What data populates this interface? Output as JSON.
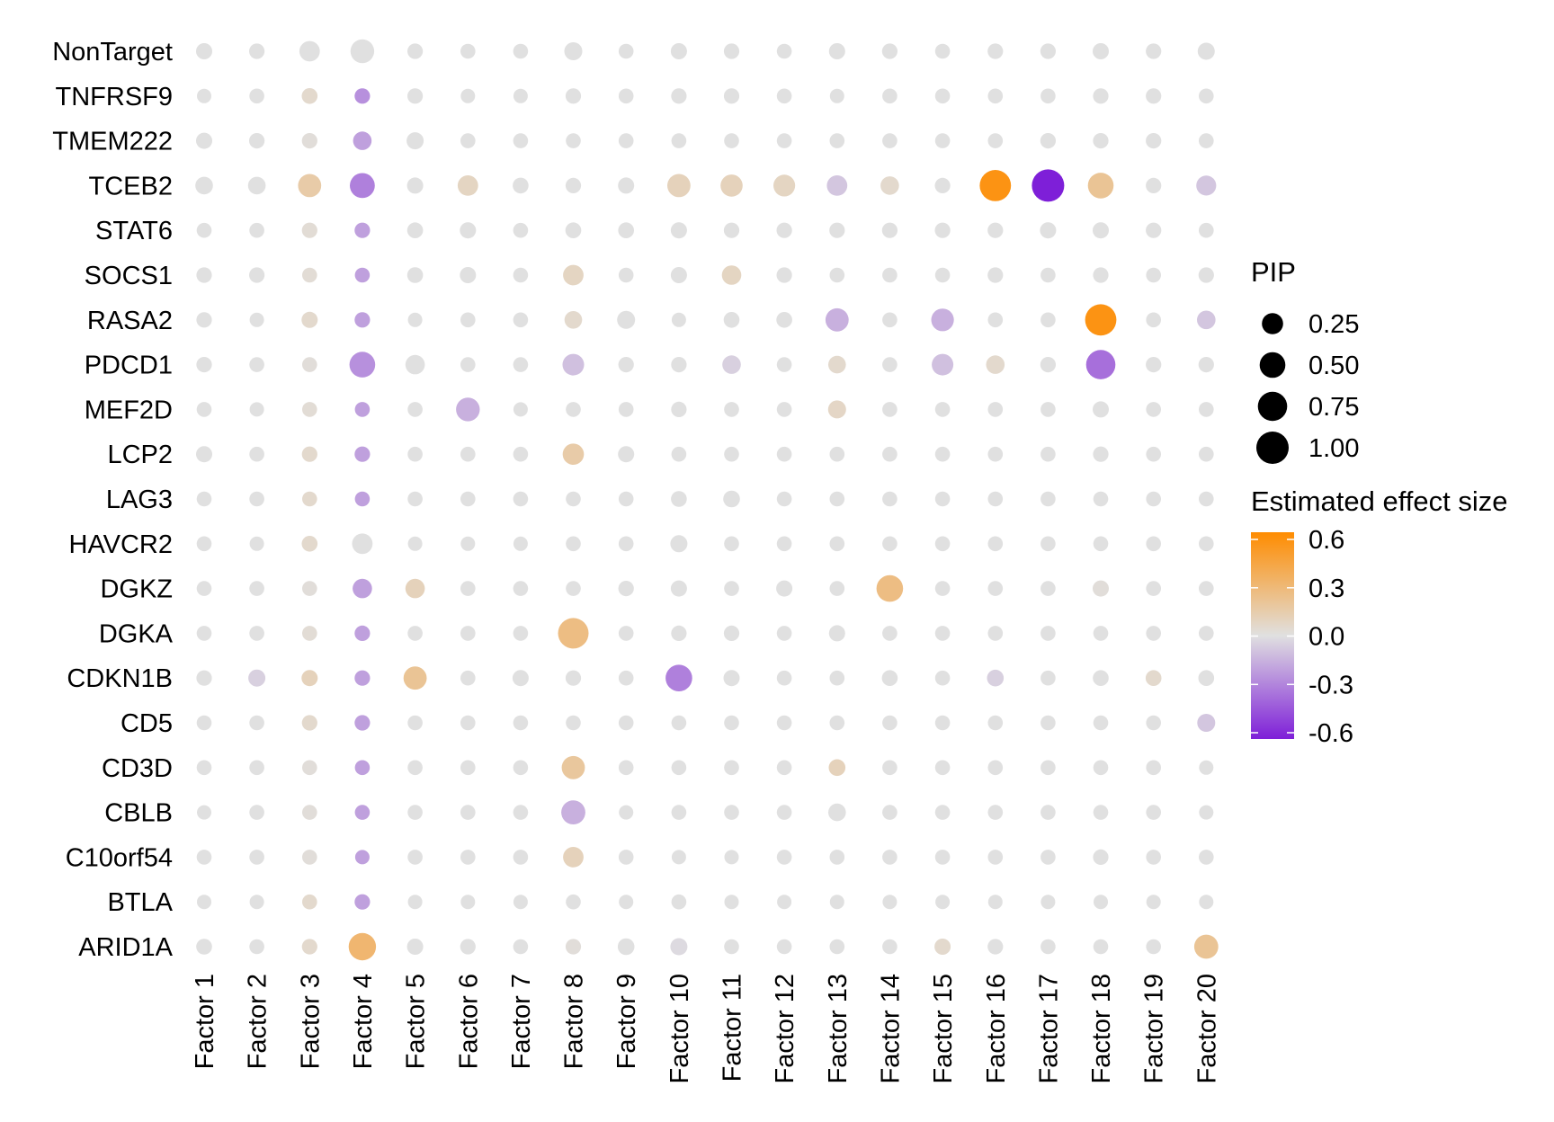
{
  "chart_data": {
    "type": "dot-heatmap",
    "x_categories": [
      "Factor 1",
      "Factor 2",
      "Factor 3",
      "Factor 4",
      "Factor 5",
      "Factor 6",
      "Factor 7",
      "Factor 8",
      "Factor 9",
      "Factor 10",
      "Factor 11",
      "Factor 12",
      "Factor 13",
      "Factor 14",
      "Factor 15",
      "Factor 16",
      "Factor 17",
      "Factor 18",
      "Factor 19",
      "Factor 20"
    ],
    "y_categories": [
      "NonTarget",
      "TNFRSF9",
      "TMEM222",
      "TCEB2",
      "STAT6",
      "SOCS1",
      "RASA2",
      "PDCD1",
      "MEF2D",
      "LCP2",
      "LAG3",
      "HAVCR2",
      "DGKZ",
      "DGKA",
      "CDKN1B",
      "CD5",
      "CD3D",
      "CBLB",
      "C10orf54",
      "BTLA",
      "ARID1A"
    ],
    "pip": [
      [
        0.08,
        0.06,
        0.22,
        0.38,
        0.06,
        0.05,
        0.05,
        0.13,
        0.05,
        0.08,
        0.06,
        0.05,
        0.08,
        0.06,
        0.05,
        0.06,
        0.06,
        0.08,
        0.06,
        0.1
      ],
      [
        0.04,
        0.05,
        0.07,
        0.06,
        0.06,
        0.04,
        0.04,
        0.06,
        0.05,
        0.06,
        0.06,
        0.05,
        0.04,
        0.05,
        0.05,
        0.05,
        0.05,
        0.06,
        0.06,
        0.05
      ],
      [
        0.08,
        0.06,
        0.06,
        0.15,
        0.1,
        0.05,
        0.05,
        0.05,
        0.05,
        0.05,
        0.05,
        0.05,
        0.05,
        0.05,
        0.05,
        0.05,
        0.06,
        0.06,
        0.06,
        0.05
      ],
      [
        0.12,
        0.12,
        0.35,
        0.45,
        0.08,
        0.22,
        0.07,
        0.06,
        0.08,
        0.35,
        0.3,
        0.28,
        0.22,
        0.15,
        0.06,
        0.9,
        1.0,
        0.5,
        0.06,
        0.2
      ],
      [
        0.05,
        0.05,
        0.06,
        0.06,
        0.07,
        0.08,
        0.05,
        0.07,
        0.07,
        0.08,
        0.06,
        0.06,
        0.06,
        0.06,
        0.06,
        0.06,
        0.08,
        0.08,
        0.06,
        0.05
      ],
      [
        0.06,
        0.06,
        0.05,
        0.05,
        0.07,
        0.08,
        0.05,
        0.22,
        0.05,
        0.08,
        0.18,
        0.06,
        0.05,
        0.05,
        0.05,
        0.06,
        0.05,
        0.06,
        0.05,
        0.06
      ],
      [
        0.06,
        0.04,
        0.08,
        0.06,
        0.04,
        0.05,
        0.05,
        0.12,
        0.13,
        0.04,
        0.07,
        0.07,
        0.35,
        0.05,
        0.32,
        0.05,
        0.05,
        0.9,
        0.05,
        0.15
      ],
      [
        0.06,
        0.05,
        0.05,
        0.5,
        0.18,
        0.05,
        0.05,
        0.27,
        0.06,
        0.06,
        0.15,
        0.05,
        0.12,
        0.05,
        0.27,
        0.15,
        0.06,
        0.75,
        0.06,
        0.06
      ],
      [
        0.05,
        0.04,
        0.05,
        0.05,
        0.05,
        0.38,
        0.04,
        0.05,
        0.05,
        0.06,
        0.05,
        0.05,
        0.13,
        0.05,
        0.05,
        0.05,
        0.05,
        0.08,
        0.05,
        0.05
      ],
      [
        0.08,
        0.05,
        0.06,
        0.06,
        0.05,
        0.05,
        0.05,
        0.25,
        0.08,
        0.05,
        0.05,
        0.05,
        0.05,
        0.05,
        0.05,
        0.05,
        0.05,
        0.06,
        0.05,
        0.05
      ],
      [
        0.05,
        0.05,
        0.05,
        0.05,
        0.05,
        0.05,
        0.05,
        0.05,
        0.05,
        0.07,
        0.09,
        0.05,
        0.05,
        0.05,
        0.05,
        0.05,
        0.05,
        0.05,
        0.05,
        0.05
      ],
      [
        0.05,
        0.04,
        0.07,
        0.22,
        0.04,
        0.04,
        0.04,
        0.05,
        0.05,
        0.1,
        0.05,
        0.05,
        0.05,
        0.05,
        0.05,
        0.05,
        0.05,
        0.05,
        0.05,
        0.05
      ],
      [
        0.05,
        0.05,
        0.05,
        0.18,
        0.18,
        0.05,
        0.05,
        0.05,
        0.06,
        0.08,
        0.05,
        0.08,
        0.05,
        0.55,
        0.05,
        0.05,
        0.05,
        0.08,
        0.05,
        0.05
      ],
      [
        0.05,
        0.05,
        0.05,
        0.06,
        0.05,
        0.05,
        0.05,
        0.85,
        0.05,
        0.06,
        0.06,
        0.05,
        0.08,
        0.05,
        0.05,
        0.05,
        0.05,
        0.05,
        0.05,
        0.05
      ],
      [
        0.06,
        0.1,
        0.08,
        0.06,
        0.35,
        0.05,
        0.08,
        0.06,
        0.05,
        0.55,
        0.08,
        0.05,
        0.05,
        0.07,
        0.05,
        0.09,
        0.05,
        0.07,
        0.07,
        0.07
      ],
      [
        0.05,
        0.05,
        0.06,
        0.06,
        0.05,
        0.05,
        0.05,
        0.05,
        0.05,
        0.05,
        0.05,
        0.05,
        0.05,
        0.05,
        0.05,
        0.05,
        0.05,
        0.05,
        0.05,
        0.13
      ],
      [
        0.05,
        0.05,
        0.05,
        0.05,
        0.05,
        0.05,
        0.05,
        0.35,
        0.05,
        0.05,
        0.05,
        0.05,
        0.09,
        0.05,
        0.05,
        0.05,
        0.05,
        0.05,
        0.05,
        0.04
      ],
      [
        0.04,
        0.05,
        0.05,
        0.05,
        0.05,
        0.05,
        0.05,
        0.4,
        0.04,
        0.05,
        0.05,
        0.05,
        0.12,
        0.05,
        0.05,
        0.05,
        0.05,
        0.05,
        0.05,
        0.04
      ],
      [
        0.05,
        0.05,
        0.05,
        0.04,
        0.05,
        0.05,
        0.05,
        0.22,
        0.05,
        0.04,
        0.04,
        0.05,
        0.05,
        0.05,
        0.05,
        0.05,
        0.05,
        0.06,
        0.05,
        0.05
      ],
      [
        0.04,
        0.04,
        0.05,
        0.06,
        0.04,
        0.04,
        0.04,
        0.05,
        0.04,
        0.05,
        0.04,
        0.04,
        0.04,
        0.04,
        0.04,
        0.04,
        0.04,
        0.04,
        0.04,
        0.04
      ],
      [
        0.07,
        0.05,
        0.06,
        0.6,
        0.08,
        0.06,
        0.05,
        0.06,
        0.09,
        0.1,
        0.05,
        0.05,
        0.05,
        0.05,
        0.08,
        0.06,
        0.05,
        0.05,
        0.05,
        0.4
      ]
    ],
    "effect": [
      [
        0,
        0,
        0,
        0,
        0,
        0,
        0,
        0,
        0,
        0,
        0,
        0,
        0,
        0,
        0,
        0,
        0,
        0,
        0,
        0
      ],
      [
        0,
        0,
        0.05,
        -0.25,
        0,
        0,
        0,
        0,
        0,
        0,
        0,
        0,
        0,
        0,
        0,
        0,
        0,
        0,
        0,
        0
      ],
      [
        0,
        0,
        0.02,
        -0.2,
        0,
        0,
        0,
        0,
        0,
        0,
        0,
        0,
        0,
        0,
        0,
        0,
        0,
        0,
        0,
        0
      ],
      [
        0,
        0,
        0.15,
        -0.3,
        0,
        0.08,
        0,
        0,
        0,
        0.1,
        0.1,
        0.08,
        -0.08,
        0.05,
        0,
        0.55,
        -0.6,
        0.2,
        0,
        -0.08
      ],
      [
        0,
        0,
        0.03,
        -0.2,
        0,
        0,
        0,
        0,
        0,
        0,
        0,
        0,
        0,
        0,
        0,
        0,
        0,
        0,
        0,
        0
      ],
      [
        0,
        0,
        0.03,
        -0.2,
        0,
        0,
        0,
        0.08,
        0,
        0,
        0.08,
        0,
        0,
        0,
        0,
        0,
        0,
        0,
        0,
        0
      ],
      [
        0,
        0,
        0.05,
        -0.2,
        0,
        0,
        0,
        0.05,
        0,
        0,
        0,
        0,
        -0.15,
        0,
        -0.15,
        0,
        0,
        0.55,
        0,
        -0.08
      ],
      [
        0,
        0,
        0.02,
        -0.25,
        0,
        0,
        0,
        -0.1,
        0,
        0,
        -0.05,
        0,
        0.05,
        0,
        -0.1,
        0.05,
        0,
        -0.35,
        0,
        0
      ],
      [
        0,
        0,
        0.03,
        -0.2,
        0,
        -0.15,
        0,
        0,
        0,
        0,
        0,
        0,
        0.07,
        0,
        0,
        0,
        0,
        0,
        0,
        0
      ],
      [
        0,
        0,
        0.05,
        -0.2,
        0,
        0,
        0,
        0.15,
        0,
        0,
        0,
        0,
        0,
        0,
        0,
        0,
        0,
        0,
        0,
        0
      ],
      [
        0,
        0,
        0.05,
        -0.2,
        0,
        0,
        0,
        0,
        0,
        0,
        0,
        0,
        0,
        0,
        0,
        0,
        0,
        0,
        0,
        0
      ],
      [
        0,
        0,
        0.05,
        0,
        0,
        0,
        0,
        0,
        0,
        0,
        0,
        0,
        0,
        0,
        0,
        0,
        0,
        0,
        0,
        0
      ],
      [
        0,
        0,
        0.02,
        -0.2,
        0.1,
        0,
        0,
        0,
        0,
        0,
        0,
        0,
        0,
        0.25,
        0,
        0,
        0,
        0.02,
        0,
        0
      ],
      [
        0,
        0,
        0.03,
        -0.2,
        0,
        0,
        0,
        0.25,
        0,
        0,
        0,
        0,
        0,
        0,
        0,
        0,
        0,
        0,
        0,
        0
      ],
      [
        0,
        -0.05,
        0.1,
        -0.2,
        0.2,
        0,
        0,
        0,
        0,
        -0.3,
        0,
        0,
        0,
        0,
        0,
        -0.05,
        0,
        0,
        0.05,
        0
      ],
      [
        0,
        0,
        0.05,
        -0.2,
        0,
        0,
        0,
        0,
        0,
        0,
        0,
        0,
        0,
        0,
        0,
        0,
        0,
        0,
        0,
        -0.08
      ],
      [
        0,
        0,
        0.02,
        -0.2,
        0,
        0,
        0,
        0.18,
        0,
        0,
        0,
        0,
        0.1,
        0,
        0,
        0,
        0,
        0,
        0,
        0
      ],
      [
        0,
        0,
        0.02,
        -0.2,
        0,
        0,
        0,
        -0.15,
        0,
        0,
        0,
        0,
        0,
        0,
        0,
        0,
        0,
        0,
        0,
        0
      ],
      [
        0,
        0,
        0.02,
        -0.2,
        0,
        0,
        0,
        0.1,
        0,
        0,
        0,
        0,
        0,
        0,
        0,
        0,
        0,
        0,
        0,
        0
      ],
      [
        0,
        0,
        0.05,
        -0.2,
        0,
        0,
        0,
        0,
        0,
        0,
        0,
        0,
        0,
        0,
        0,
        0,
        0,
        0,
        0,
        0
      ],
      [
        0,
        0,
        0.05,
        0.3,
        0,
        0,
        0,
        0.02,
        0,
        -0.02,
        0,
        0,
        0,
        0,
        0.05,
        0,
        0,
        0,
        0,
        0.2
      ]
    ],
    "legend": {
      "size_title": "PIP",
      "size_breaks": [
        "0.25",
        "0.50",
        "0.75",
        "1.00"
      ],
      "size_values": [
        0.25,
        0.5,
        0.75,
        1.0
      ],
      "color_title": "Estimated effect size",
      "color_breaks": [
        "0.6",
        "0.3",
        "0.0",
        "-0.3",
        "-0.6"
      ],
      "color_values": [
        0.6,
        0.3,
        0.0,
        -0.3,
        -0.6
      ],
      "color_range": [
        -0.6,
        0.6
      ],
      "color_low": "#7e1fd8",
      "color_mid": "#e0e0e0",
      "color_high": "#ff8c00"
    }
  }
}
